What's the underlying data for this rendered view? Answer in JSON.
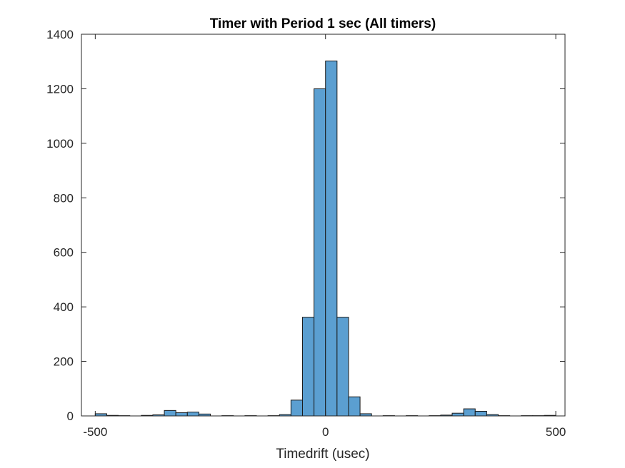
{
  "chart_data": {
    "type": "bar",
    "title": "Timer with Period 1 sec (All timers)",
    "xlabel": "Timedrift (usec)",
    "ylabel": "",
    "xlim": [
      -530,
      520
    ],
    "ylim": [
      0,
      1400
    ],
    "xticks": [
      -500,
      0,
      500
    ],
    "yticks": [
      0,
      200,
      400,
      600,
      800,
      1000,
      1200,
      1400
    ],
    "bin_width": 25,
    "bar_color": "#5b9fd1",
    "edge_color": "#1a1a1a",
    "grid": false,
    "bins": [
      {
        "x0": -500,
        "x1": -475,
        "count": 8
      },
      {
        "x0": -475,
        "x1": -450,
        "count": 2
      },
      {
        "x0": -450,
        "x1": -425,
        "count": 1
      },
      {
        "x0": -425,
        "x1": -400,
        "count": 0
      },
      {
        "x0": -400,
        "x1": -375,
        "count": 2
      },
      {
        "x0": -375,
        "x1": -350,
        "count": 4
      },
      {
        "x0": -350,
        "x1": -325,
        "count": 20
      },
      {
        "x0": -325,
        "x1": -300,
        "count": 12
      },
      {
        "x0": -300,
        "x1": -275,
        "count": 14
      },
      {
        "x0": -275,
        "x1": -250,
        "count": 7
      },
      {
        "x0": -250,
        "x1": -225,
        "count": 0
      },
      {
        "x0": -225,
        "x1": -200,
        "count": 1
      },
      {
        "x0": -200,
        "x1": -175,
        "count": 0
      },
      {
        "x0": -175,
        "x1": -150,
        "count": 1
      },
      {
        "x0": -150,
        "x1": -125,
        "count": 0
      },
      {
        "x0": -125,
        "x1": -100,
        "count": 1
      },
      {
        "x0": -100,
        "x1": -75,
        "count": 5
      },
      {
        "x0": -75,
        "x1": -50,
        "count": 58
      },
      {
        "x0": -50,
        "x1": -25,
        "count": 362
      },
      {
        "x0": -25,
        "x1": 0,
        "count": 1200
      },
      {
        "x0": 0,
        "x1": 25,
        "count": 1302
      },
      {
        "x0": 25,
        "x1": 50,
        "count": 362
      },
      {
        "x0": 50,
        "x1": 75,
        "count": 70
      },
      {
        "x0": 75,
        "x1": 100,
        "count": 8
      },
      {
        "x0": 100,
        "x1": 125,
        "count": 0
      },
      {
        "x0": 125,
        "x1": 150,
        "count": 1
      },
      {
        "x0": 150,
        "x1": 175,
        "count": 0
      },
      {
        "x0": 175,
        "x1": 200,
        "count": 1
      },
      {
        "x0": 200,
        "x1": 225,
        "count": 0
      },
      {
        "x0": 225,
        "x1": 250,
        "count": 1
      },
      {
        "x0": 250,
        "x1": 275,
        "count": 3
      },
      {
        "x0": 275,
        "x1": 300,
        "count": 10
      },
      {
        "x0": 300,
        "x1": 325,
        "count": 26
      },
      {
        "x0": 325,
        "x1": 350,
        "count": 17
      },
      {
        "x0": 350,
        "x1": 375,
        "count": 5
      },
      {
        "x0": 375,
        "x1": 400,
        "count": 1
      },
      {
        "x0": 400,
        "x1": 425,
        "count": 0
      },
      {
        "x0": 425,
        "x1": 450,
        "count": 1
      },
      {
        "x0": 450,
        "x1": 475,
        "count": 1
      },
      {
        "x0": 475,
        "x1": 500,
        "count": 2
      }
    ]
  }
}
